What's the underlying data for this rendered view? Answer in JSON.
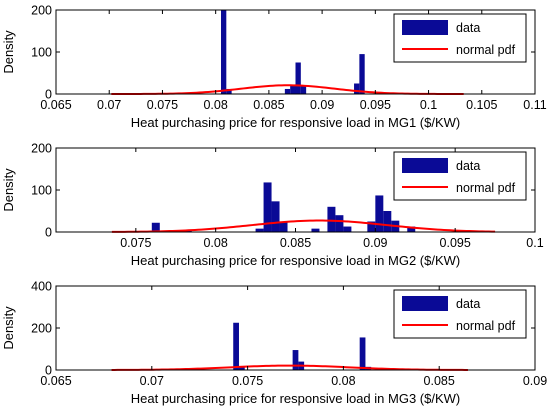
{
  "chart_data": [
    {
      "type": "bar",
      "xlabel": "Heat purchasing price for responsive load in MG1 ($/KW)",
      "ylabel": "Density",
      "xlim": [
        0.065,
        0.11
      ],
      "ylim": [
        0,
        200
      ],
      "xticks": [
        "0.065",
        "0.07",
        "0.075",
        "0.08",
        "0.085",
        "0.09",
        "0.095",
        "0.1",
        "0.105",
        "0.11"
      ],
      "yticks": [
        "0",
        "100",
        "200"
      ],
      "legend": {
        "placement": "top-right",
        "entries": [
          "data",
          "normal pdf"
        ]
      },
      "series": [
        {
          "name": "data",
          "kind": "histogram",
          "bin_width": 0.0005,
          "bins": [
            {
              "x": 0.0805,
              "y": 200
            },
            {
              "x": 0.081,
              "y": 12
            },
            {
              "x": 0.0865,
              "y": 12
            },
            {
              "x": 0.087,
              "y": 20
            },
            {
              "x": 0.0875,
              "y": 75
            },
            {
              "x": 0.088,
              "y": 20
            },
            {
              "x": 0.093,
              "y": 25
            },
            {
              "x": 0.0935,
              "y": 95
            }
          ]
        },
        {
          "name": "normal pdf",
          "kind": "line",
          "mean": 0.0868,
          "std": 0.0044,
          "range": [
            0.0702,
            0.1033
          ]
        }
      ]
    },
    {
      "type": "bar",
      "xlabel": "Heat purchasing price for responsive load in MG2 ($/KW)",
      "ylabel": "Density",
      "xlim": [
        0.07,
        0.1
      ],
      "ylim": [
        0,
        200
      ],
      "xticks": [
        "0.075",
        "0.08",
        "0.085",
        "0.09",
        "0.095",
        "0.1"
      ],
      "yticks": [
        "0",
        "100",
        "200"
      ],
      "legend": {
        "placement": "top-right",
        "entries": [
          "data",
          "normal pdf"
        ]
      },
      "series": [
        {
          "name": "data",
          "kind": "histogram",
          "bin_width": 0.0005,
          "bins": [
            {
              "x": 0.076,
              "y": 22
            },
            {
              "x": 0.078,
              "y": 5
            },
            {
              "x": 0.0825,
              "y": 8
            },
            {
              "x": 0.083,
              "y": 118
            },
            {
              "x": 0.0835,
              "y": 73
            },
            {
              "x": 0.084,
              "y": 25
            },
            {
              "x": 0.086,
              "y": 8
            },
            {
              "x": 0.087,
              "y": 60
            },
            {
              "x": 0.0875,
              "y": 40
            },
            {
              "x": 0.088,
              "y": 13
            },
            {
              "x": 0.0895,
              "y": 25
            },
            {
              "x": 0.09,
              "y": 87
            },
            {
              "x": 0.0905,
              "y": 50
            },
            {
              "x": 0.091,
              "y": 27
            },
            {
              "x": 0.092,
              "y": 13
            }
          ]
        },
        {
          "name": "normal pdf",
          "kind": "line",
          "mean": 0.0865,
          "std": 0.0042,
          "range": [
            0.0735,
            0.0975
          ]
        }
      ]
    },
    {
      "type": "bar",
      "xlabel": "Heat purchasing price for responsive load in MG3 ($/KW)",
      "ylabel": "Density",
      "xlim": [
        0.065,
        0.09
      ],
      "ylim": [
        0,
        400
      ],
      "xticks": [
        "0.065",
        "0.07",
        "0.075",
        "0.08",
        "0.085",
        "0.09"
      ],
      "yticks": [
        "0",
        "200",
        "400"
      ],
      "legend": {
        "placement": "top-right",
        "entries": [
          "data",
          "normal pdf"
        ]
      },
      "series": [
        {
          "name": "data",
          "kind": "histogram",
          "bin_width": 0.0003,
          "bins": [
            {
              "x": 0.07425,
              "y": 225
            },
            {
              "x": 0.07455,
              "y": 15
            },
            {
              "x": 0.07735,
              "y": 95
            },
            {
              "x": 0.07765,
              "y": 40
            },
            {
              "x": 0.08085,
              "y": 155
            },
            {
              "x": 0.08115,
              "y": 15
            }
          ]
        },
        {
          "name": "normal pdf",
          "kind": "line",
          "mean": 0.0772,
          "std": 0.0031,
          "range": [
            0.0679,
            0.0865
          ]
        }
      ]
    }
  ]
}
